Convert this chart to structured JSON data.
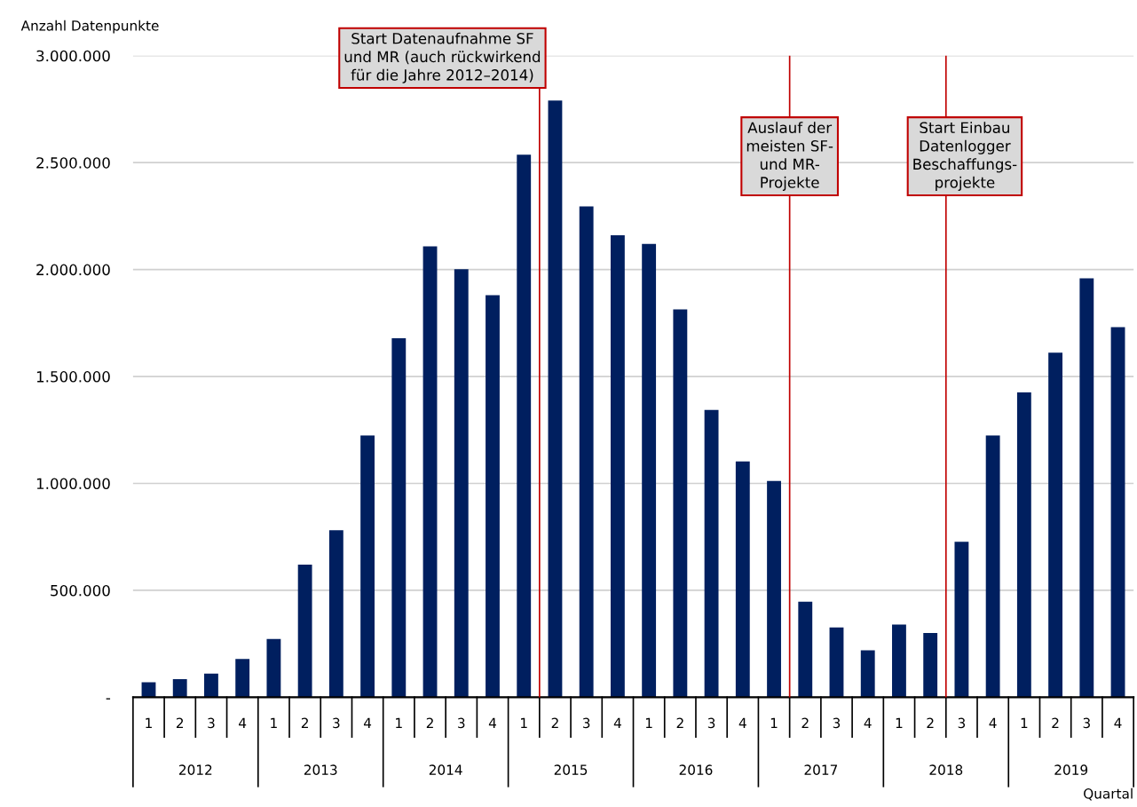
{
  "chart_data": {
    "type": "bar",
    "ylabel": "Anzahl Datenpunkte",
    "xlabel": "Quartal",
    "categories": [
      "1",
      "2",
      "3",
      "4",
      "1",
      "2",
      "3",
      "4",
      "1",
      "2",
      "3",
      "4",
      "1",
      "2",
      "3",
      "4",
      "1",
      "2",
      "3",
      "4",
      "1",
      "2",
      "3",
      "4",
      "1",
      "2",
      "3",
      "4",
      "1",
      "2",
      "3",
      "4"
    ],
    "values": [
      70000,
      85000,
      111000,
      179000,
      272000,
      620000,
      781000,
      1224000,
      1679000,
      2108000,
      2001000,
      1880000,
      2537000,
      2790000,
      2295000,
      2160000,
      2120000,
      1814000,
      1343000,
      1103000,
      1011000,
      447000,
      326000,
      219000,
      340000,
      300000,
      727000,
      1224000,
      1425000,
      1611000,
      1959000,
      1731000
    ],
    "color": "#001f5f",
    "ylim": [
      0,
      3000000
    ],
    "yticks": [
      {
        "value": 0,
        "label": "-"
      },
      {
        "value": 500000,
        "label": "500.000"
      },
      {
        "value": 1000000,
        "label": "1.000.000"
      },
      {
        "value": 1500000,
        "label": "1.500.000"
      },
      {
        "value": 2000000,
        "label": "2.000.000"
      },
      {
        "value": 2500000,
        "label": "2.500.000"
      },
      {
        "value": 3000000,
        "label": "3.000.000"
      }
    ],
    "grid": "y",
    "annotations": [
      "2012",
      "2013",
      "2014",
      "2015",
      "2016",
      "2017",
      "2018",
      "2019",
      "Start Datenaufnahme SF\nund MR (auch rückwirkend\nfür die Jahre 2012–2014)",
      "Auslauf der\nmeisten SF-\nund MR-\nProjekte",
      "Start Einbau\nDatenlogger\nBeschaffungs-\nprojekte"
    ]
  }
}
